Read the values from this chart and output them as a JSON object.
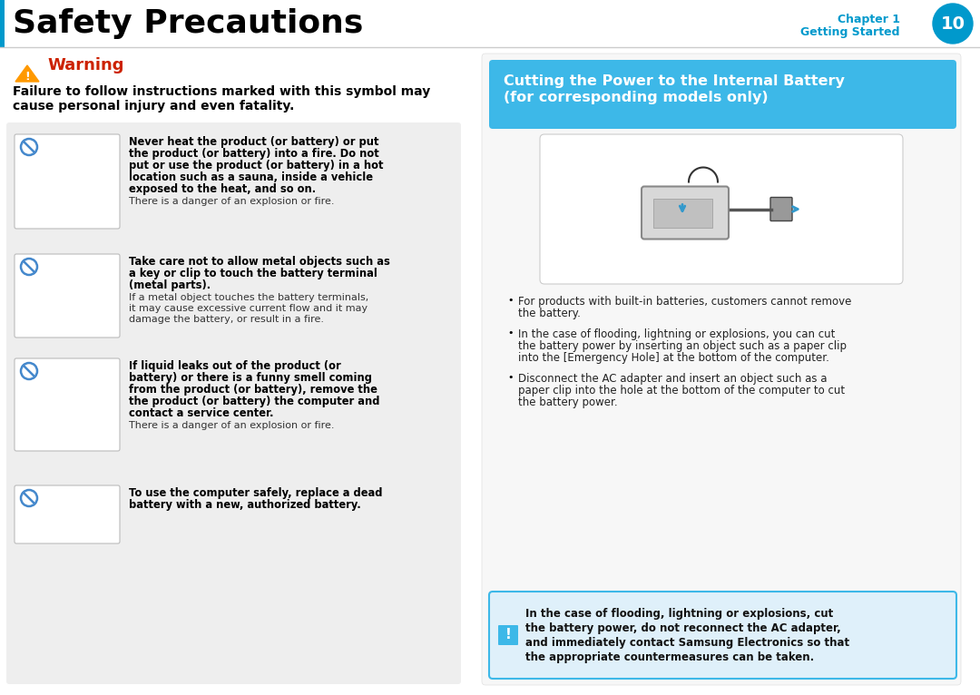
{
  "title": "Safety Precautions",
  "chapter_label": "Chapter 1",
  "getting_started_label": "Getting Started",
  "page_number": "10",
  "header_blue": "#0099CC",
  "bg_color": "#ffffff",
  "left_panel_bg": "#eeeeee",
  "warning_color": "#cc2200",
  "warning_text": "Warning",
  "warning_subtitle_line1": "Failure to follow instructions marked with this symbol may",
  "warning_subtitle_line2": "cause personal injury and even fatality.",
  "right_box_title_line1": "Cutting the Power to the Internal Battery",
  "right_box_title_line2": "(for corresponding models only)",
  "right_box_bg": "#3db8e8",
  "items_left": [
    {
      "bold_text": "Never heat the product (or battery) or put\nthe product (or battery) into a fire. Do not\nput or use the product (or battery) in a hot\nlocation such as a sauna, inside a vehicle\nexposed to the heat, and so on.",
      "normal_text": "There is a danger of an explosion or fire."
    },
    {
      "bold_text": "Take care not to allow metal objects such as\na key or clip to touch the battery terminal\n(metal parts).",
      "normal_text": "If a metal object touches the battery terminals,\nit may cause excessive current flow and it may\ndamage the battery, or result in a fire."
    },
    {
      "bold_text": "If liquid leaks out of the product (or\nbattery) or there is a funny smell coming\nfrom the product (or battery), remove the\nthe product (or battery) the computer and\ncontact a service center.",
      "normal_text": "There is a danger of an explosion or fire."
    },
    {
      "bold_text": "To use the computer safely, replace a dead\nbattery with a new, authorized battery.",
      "normal_text": ""
    }
  ],
  "bullet_points": [
    "For products with built-in batteries, customers cannot remove\nthe battery.",
    "In the case of flooding, lightning or explosions, you can cut\nthe battery power by inserting an object such as a paper clip\ninto the [Emergency Hole] at the bottom of the computer.",
    "Disconnect the AC adapter and insert an object such as a\npaper clip into the hole at the bottom of the computer to cut\nthe battery power."
  ],
  "caution_box_text": [
    "In the case of flooding, lightning or explosions, cut",
    "the battery power, do not reconnect the AC adapter,",
    "and immediately contact Samsung Electronics so that",
    "the appropriate countermeasures can be taken."
  ],
  "caution_box_bg": "#dff0fa",
  "caution_box_border": "#3db8e8"
}
